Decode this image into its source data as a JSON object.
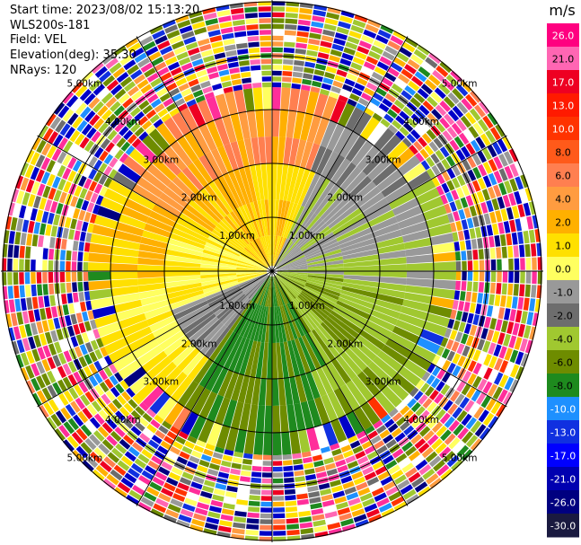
{
  "header": {
    "start_time": "Start time: 2023/08/02 15:13:20",
    "instrument": "WLS200s-181",
    "field": "Field: VEL",
    "elevation": "Elevation(deg): 35.30",
    "nrays": "NRays: 120"
  },
  "colorbar": {
    "unit": "m/s",
    "labels": [
      "26.0",
      "21.0",
      "17.0",
      "13.0",
      "10.0",
      "8.0",
      "6.0",
      "4.0",
      "2.0",
      "1.0",
      "0.0",
      "-1.0",
      "-2.0",
      "-4.0",
      "-6.0",
      "-8.0",
      "-10.0",
      "-13.0",
      "-17.0",
      "-21.0",
      "-26.0",
      "-30.0"
    ],
    "colors": [
      "#ff0080",
      "#ff66b3",
      "#ee0022",
      "#ff1a00",
      "#ff3300",
      "#ff5a1a",
      "#ff7f50",
      "#ff9c40",
      "#ffb000",
      "#ffe000",
      "#ffff60",
      "#999999",
      "#6d6d6d",
      "#a0c830",
      "#6e8c00",
      "#1e8a1e",
      "#1e90ff",
      "#1030e0",
      "#0000ff",
      "#0000b0",
      "#000080",
      "#1a1a40"
    ]
  },
  "range_rings": {
    "labels": [
      "1.00km",
      "2.00km",
      "3.00km",
      "4.00km",
      "5.00km"
    ]
  },
  "scan": {
    "rays": 120
  }
}
